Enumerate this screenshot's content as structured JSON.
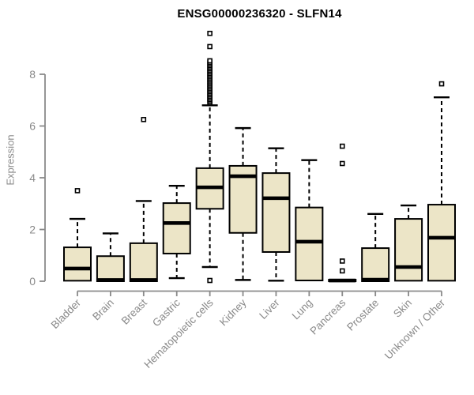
{
  "colors": {
    "background": "#ffffff",
    "box_fill": "#ece5c7",
    "box_border": "#000000",
    "median": "#000000",
    "whisker": "#000000",
    "outlier_fill": "#ffffff",
    "axis": "#8a8a8a",
    "tick_label": "#8a8a8a",
    "title": "#000000"
  },
  "chart_data": {
    "type": "boxplot",
    "title": "ENSG00000236320 - SLFN14",
    "ylabel": "Expression",
    "xlabel": "",
    "ylim": [
      0,
      9.8
    ],
    "yticks": [
      0,
      2,
      4,
      6,
      8
    ],
    "grid": false,
    "legend": false,
    "categories": [
      "Bladder",
      "Brain",
      "Breast",
      "Gastric",
      "Hematopoietic cells",
      "Kidney",
      "Liver",
      "Lung",
      "Pancreas",
      "Prostate",
      "Skin",
      "Unknown / Other"
    ],
    "series": [
      {
        "name": "Bladder",
        "whisker_low": 0.02,
        "q1": 0.02,
        "median": 0.49,
        "q3": 1.31,
        "whisker_high": 2.41,
        "outliers": [
          3.5
        ]
      },
      {
        "name": "Brain",
        "whisker_low": 0.0,
        "q1": 0.0,
        "median": 0.05,
        "q3": 0.97,
        "whisker_high": 1.85,
        "outliers": []
      },
      {
        "name": "Breast",
        "whisker_low": 0.0,
        "q1": 0.0,
        "median": 0.05,
        "q3": 1.47,
        "whisker_high": 3.1,
        "outliers": [
          6.25
        ]
      },
      {
        "name": "Gastric",
        "whisker_low": 0.12,
        "q1": 1.07,
        "median": 2.25,
        "q3": 3.02,
        "whisker_high": 3.69,
        "outliers": []
      },
      {
        "name": "Hematopoietic cells",
        "whisker_low": 0.55,
        "q1": 2.8,
        "median": 3.63,
        "q3": 4.37,
        "whisker_high": 6.8,
        "outliers": [
          0.03,
          6.9,
          6.96,
          7.02,
          7.08,
          7.14,
          7.2,
          7.26,
          7.32,
          7.38,
          7.44,
          7.5,
          7.56,
          7.62,
          7.68,
          7.74,
          7.8,
          7.86,
          7.92,
          7.98,
          8.04,
          8.1,
          8.16,
          8.22,
          8.28,
          8.34,
          8.4,
          8.46,
          8.52,
          9.07,
          9.58
        ]
      },
      {
        "name": "Kidney",
        "whisker_low": 0.05,
        "q1": 1.87,
        "median": 4.06,
        "q3": 4.46,
        "whisker_high": 5.92,
        "outliers": []
      },
      {
        "name": "Liver",
        "whisker_low": 0.02,
        "q1": 1.13,
        "median": 3.21,
        "q3": 4.18,
        "whisker_high": 5.14,
        "outliers": []
      },
      {
        "name": "Lung",
        "whisker_low": 0.03,
        "q1": 0.03,
        "median": 1.53,
        "q3": 2.85,
        "whisker_high": 4.68,
        "outliers": []
      },
      {
        "name": "Pancreas",
        "whisker_low": 0.0,
        "q1": 0.0,
        "median": 0.03,
        "q3": 0.06,
        "whisker_high": 0.06,
        "outliers": [
          0.4,
          0.78,
          4.55,
          5.22
        ]
      },
      {
        "name": "Prostate",
        "whisker_low": 0.0,
        "q1": 0.0,
        "median": 0.06,
        "q3": 1.28,
        "whisker_high": 2.6,
        "outliers": []
      },
      {
        "name": "Skin",
        "whisker_low": 0.02,
        "q1": 0.02,
        "median": 0.55,
        "q3": 2.41,
        "whisker_high": 2.93,
        "outliers": []
      },
      {
        "name": "Unknown / Other",
        "whisker_low": 0.02,
        "q1": 0.02,
        "median": 1.68,
        "q3": 2.96,
        "whisker_high": 7.11,
        "outliers": [
          7.63
        ]
      }
    ]
  }
}
